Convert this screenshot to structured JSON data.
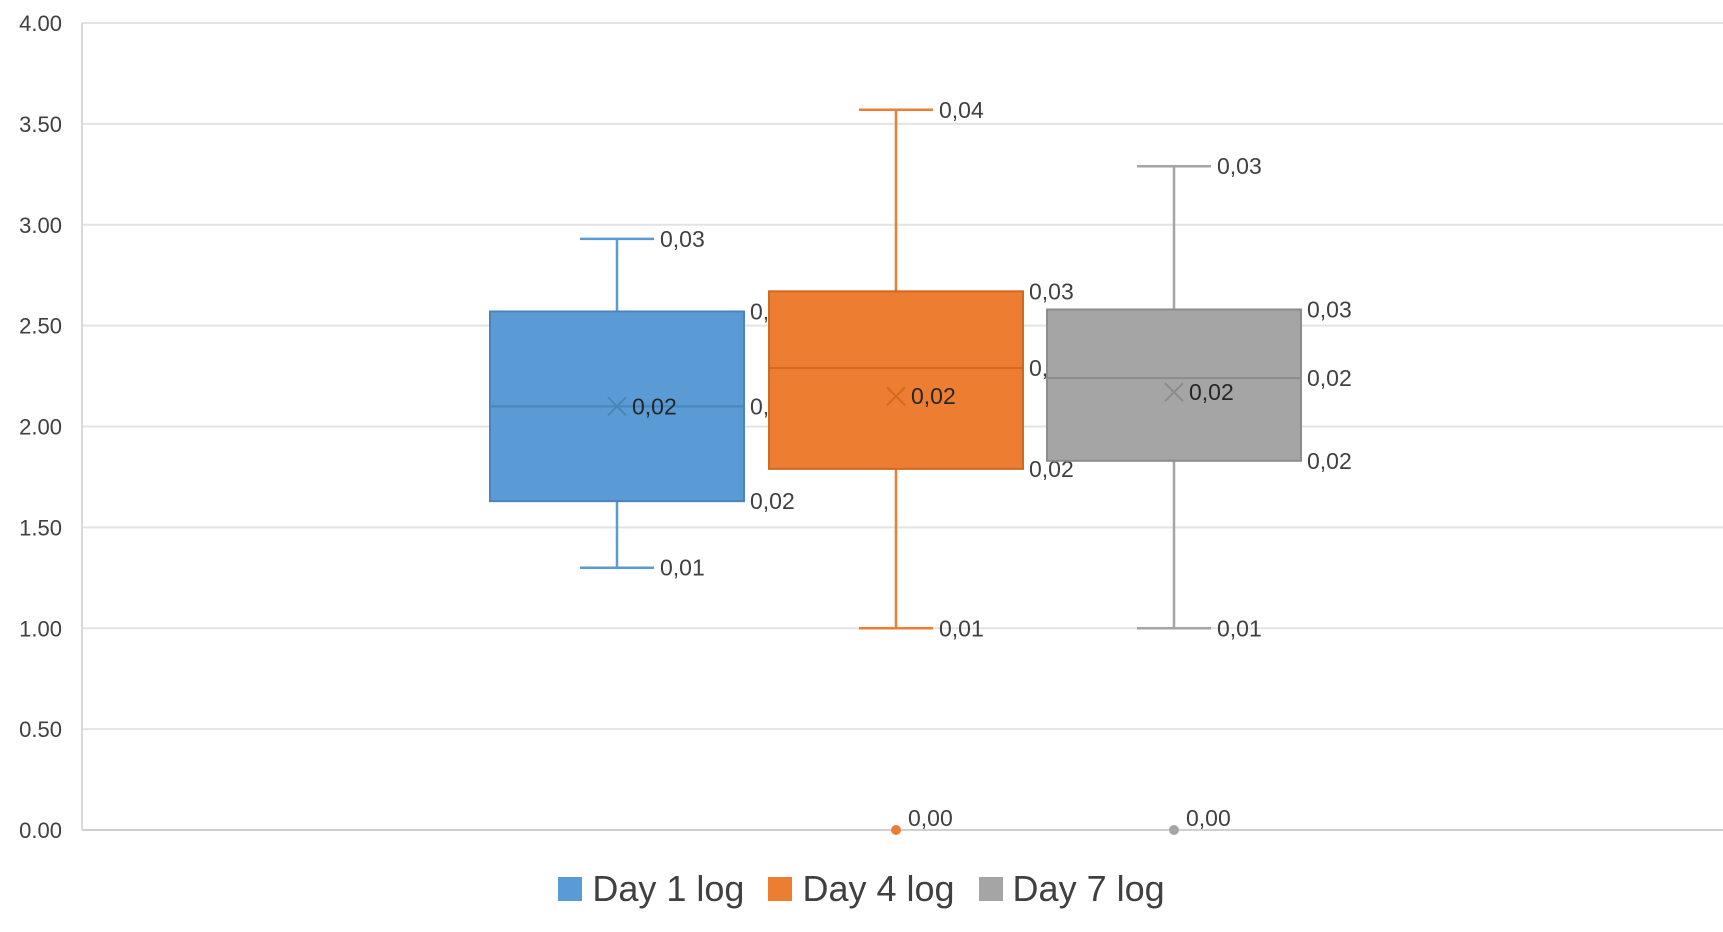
{
  "chart_data": {
    "type": "box",
    "title": "",
    "xlabel": "",
    "ylabel": "",
    "ylim": [
      0,
      4
    ],
    "yticks": [
      "0.00",
      "0.50",
      "1.00",
      "1.50",
      "2.00",
      "2.50",
      "3.00",
      "3.50",
      "4.00"
    ],
    "grid": true,
    "legend_position": "bottom",
    "series": [
      {
        "name": "Day 1 log",
        "color": "#5B9BD5",
        "stroke": "#4A84BA",
        "min": 1.3,
        "q1": 1.63,
        "median": 2.1,
        "mean": 2.1,
        "q3": 2.57,
        "max": 2.93,
        "outliers": [],
        "labels": {
          "min": "0,01",
          "q1": "0,02",
          "median": "0,02",
          "mean": "0,02",
          "q3": "0,03",
          "max": "0,03"
        }
      },
      {
        "name": "Day 4 log",
        "color": "#ED7D31",
        "stroke": "#D06A22",
        "min": 1.0,
        "q1": 1.79,
        "median": 2.29,
        "mean": 2.15,
        "q3": 2.67,
        "max": 3.57,
        "outliers": [
          0.0
        ],
        "labels": {
          "min": "0,01",
          "q1": "0,02",
          "median": "0,02",
          "mean": "0,02",
          "q3": "0,03",
          "max": "0,04",
          "outliers": [
            "0,00"
          ]
        }
      },
      {
        "name": "Day 7 log",
        "color": "#A5A5A5",
        "stroke": "#8C8C8C",
        "min": 1.0,
        "q1": 1.83,
        "median": 2.24,
        "mean": 2.17,
        "q3": 2.58,
        "max": 3.29,
        "outliers": [
          0.0
        ],
        "labels": {
          "min": "0,01",
          "q1": "0,02",
          "median": "0,02",
          "mean": "0,02",
          "q3": "0,03",
          "max": "0,03",
          "outliers": [
            "0,00"
          ]
        }
      }
    ]
  }
}
